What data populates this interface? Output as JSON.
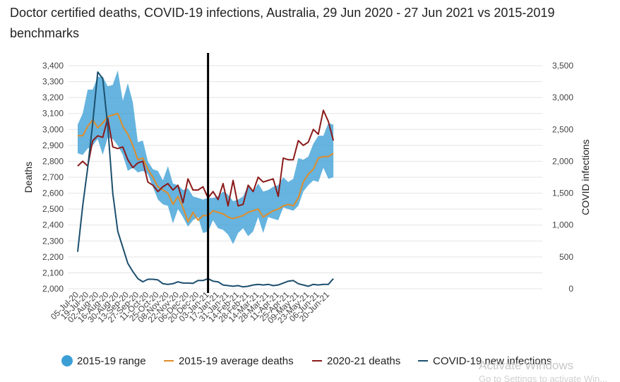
{
  "chart_data": {
    "type": "line",
    "title": "Doctor certified deaths, COVID-19 infections, Australia, 29 Jun 2020 - 27 Jun 2021 vs 2015-2019 benchmarks",
    "ylabel": "Deaths",
    "y2label": "COVID infections",
    "ylim": [
      2000,
      3400
    ],
    "y2lim": [
      0,
      3500
    ],
    "y_ticks": [
      "3,400",
      "3,300",
      "3,200",
      "3,100",
      "3,000",
      "2,900",
      "2,800",
      "2,700",
      "2,600",
      "2,500",
      "2,400",
      "2,300",
      "2,200",
      "2,100",
      "2,000"
    ],
    "y2_ticks": [
      "3,500",
      "3,000",
      "2,500",
      "2,000",
      "1,500",
      "1,000",
      "500",
      "0"
    ],
    "x_tick_labels": [
      "05-Jul-20",
      "19-Jul-20",
      "02-Aug-20",
      "16-Aug-20",
      "30-Aug-20",
      "13-Sep-20",
      "27-Sep-20",
      "11-Oct-20",
      "25-Oct-20",
      "08-Nov-20",
      "22-Nov-20",
      "06-Dec-20",
      "20-Dec-20",
      "03-Jan-21",
      "17-Jan-21",
      "31-Jan-21",
      "14-Feb-21",
      "28-Feb-21",
      "14-Mar-21",
      "28-Mar-21",
      "11-Apr-21",
      "25-Apr-21",
      "09-May-21",
      "23-May-21",
      "06-Jun-21",
      "20-Jun-21"
    ],
    "x": [
      "05-Jul-20",
      "12-Jul-20",
      "19-Jul-20",
      "26-Jul-20",
      "02-Aug-20",
      "09-Aug-20",
      "16-Aug-20",
      "23-Aug-20",
      "30-Aug-20",
      "06-Sep-20",
      "13-Sep-20",
      "20-Sep-20",
      "27-Sep-20",
      "04-Oct-20",
      "11-Oct-20",
      "18-Oct-20",
      "25-Oct-20",
      "01-Nov-20",
      "08-Nov-20",
      "15-Nov-20",
      "22-Nov-20",
      "29-Nov-20",
      "06-Dec-20",
      "13-Dec-20",
      "20-Dec-20",
      "27-Dec-20",
      "03-Jan-21",
      "10-Jan-21",
      "17-Jan-21",
      "24-Jan-21",
      "31-Jan-21",
      "07-Feb-21",
      "14-Feb-21",
      "21-Feb-21",
      "28-Feb-21",
      "07-Mar-21",
      "14-Mar-21",
      "21-Mar-21",
      "28-Mar-21",
      "04-Apr-21",
      "11-Apr-21",
      "18-Apr-21",
      "25-Apr-21",
      "02-May-21",
      "09-May-21",
      "16-May-21",
      "23-May-21",
      "30-May-21",
      "06-Jun-21",
      "13-Jun-21",
      "20-Jun-21",
      "27-Jun-21"
    ],
    "vertical_marker": "03-Jan-21",
    "series": [
      {
        "name": "2015-19 range",
        "kind": "band",
        "color": "#3b9fd6",
        "axis": "left",
        "low": [
          2850,
          2840,
          2880,
          2900,
          2940,
          2840,
          2950,
          2940,
          2900,
          2840,
          2740,
          2760,
          2730,
          2740,
          2720,
          2640,
          2560,
          2530,
          2520,
          2410,
          2500,
          2450,
          2390,
          2430,
          2450,
          2350,
          2360,
          2430,
          2380,
          2370,
          2340,
          2280,
          2350,
          2380,
          2330,
          2360,
          2450,
          2350,
          2450,
          2440,
          2430,
          2510,
          2500,
          2490,
          2520,
          2610,
          2650,
          2680,
          2670,
          2760,
          2690,
          2700
        ],
        "high": [
          3030,
          3100,
          3250,
          3250,
          3330,
          3330,
          3270,
          3280,
          3370,
          3180,
          3290,
          3170,
          2920,
          2930,
          2800,
          2750,
          2740,
          2680,
          2770,
          2660,
          2650,
          2620,
          2630,
          2580,
          2570,
          2560,
          2570,
          2570,
          2580,
          2610,
          2590,
          2550,
          2560,
          2580,
          2650,
          2610,
          2660,
          2610,
          2620,
          2640,
          2650,
          2700,
          2670,
          2690,
          2820,
          2810,
          2830,
          2910,
          2960,
          2960,
          3040,
          3030
        ]
      },
      {
        "name": "2015-19 average deaths",
        "kind": "line",
        "color": "#e08c2a",
        "axis": "left",
        "values": [
          2960,
          2960,
          3020,
          3060,
          3010,
          3040,
          3080,
          3090,
          3100,
          3020,
          2970,
          2900,
          2810,
          2820,
          2750,
          2700,
          2640,
          2620,
          2600,
          2530,
          2580,
          2510,
          2420,
          2480,
          2430,
          2460,
          2460,
          2490,
          2480,
          2470,
          2450,
          2440,
          2450,
          2460,
          2480,
          2490,
          2500,
          2450,
          2470,
          2490,
          2500,
          2520,
          2530,
          2520,
          2570,
          2670,
          2720,
          2750,
          2820,
          2830,
          2830,
          2850
        ]
      },
      {
        "name": "2020-21 deaths",
        "kind": "line",
        "color": "#8b1a1a",
        "axis": "left",
        "values": [
          2770,
          2800,
          2770,
          2930,
          2960,
          2950,
          3070,
          2890,
          2880,
          2890,
          2810,
          2760,
          2790,
          2800,
          2670,
          2650,
          2610,
          2640,
          2660,
          2620,
          2650,
          2540,
          2690,
          2620,
          2620,
          2640,
          2570,
          2610,
          2560,
          2660,
          2520,
          2680,
          2520,
          2530,
          2650,
          2610,
          2700,
          2670,
          2680,
          2690,
          2580,
          2820,
          2810,
          2810,
          2930,
          2900,
          2920,
          3000,
          2970,
          3120,
          3050,
          2930
        ]
      },
      {
        "name": "COVID-19 new infections",
        "kind": "line",
        "color": "#1c4f6e",
        "axis": "right",
        "values": [
          580,
          1300,
          1900,
          2600,
          3400,
          3300,
          2550,
          1500,
          900,
          650,
          400,
          270,
          160,
          110,
          150,
          150,
          140,
          80,
          70,
          80,
          110,
          90,
          90,
          85,
          130,
          130,
          160,
          120,
          110,
          60,
          50,
          40,
          50,
          30,
          40,
          60,
          70,
          60,
          70,
          50,
          60,
          90,
          120,
          130,
          80,
          60,
          40,
          70,
          60,
          70,
          70,
          160
        ]
      }
    ],
    "legend_position": "bottom",
    "grid": true
  },
  "watermark": {
    "line1": "Activate Windows",
    "line2": "Go to Settings to activate Win..."
  }
}
